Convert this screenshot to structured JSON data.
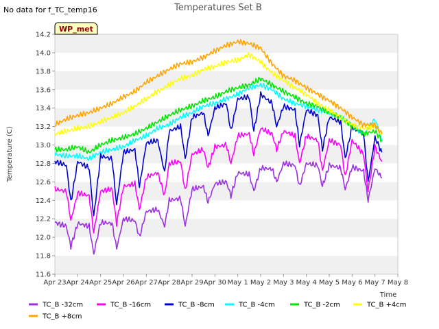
{
  "chart_data": {
    "type": "line",
    "title": "Temperatures Set B",
    "no_data_note": "No data for f_TC_temp16",
    "badge": "WP_met",
    "xlabel": "Time",
    "ylabel": "Temperature (C)",
    "ylim": [
      11.6,
      14.2
    ],
    "y_ticks": [
      "11.6",
      "11.8",
      "12.0",
      "12.2",
      "12.4",
      "12.6",
      "12.8",
      "13.0",
      "13.2",
      "13.4",
      "13.6",
      "13.8",
      "14.0",
      "14.2"
    ],
    "xlim": [
      0,
      15
    ],
    "x_tick_labels": [
      "Apr 23",
      "Apr 24",
      "Apr 25",
      "Apr 26",
      "Apr 27",
      "Apr 28",
      "Apr 29",
      "Apr 30",
      "May 1",
      "May 2",
      "May 3",
      "May 4",
      "May 5",
      "May 6",
      "May 7",
      "May 8"
    ],
    "x_data_unit": "days since Apr 23",
    "grid": "horizontal alternating bands",
    "legend_placement": "bottom",
    "series": [
      {
        "name": "TC_B -32cm",
        "color": "#9b30e0",
        "x": [
          0,
          0.5,
          0.7,
          1,
          1.5,
          1.7,
          2,
          2.5,
          2.7,
          3,
          3.5,
          3.7,
          4,
          4.5,
          4.8,
          5,
          5.5,
          5.7,
          6,
          6.5,
          6.7,
          7,
          7.5,
          7.7,
          8,
          8.5,
          8.7,
          9,
          9.5,
          9.7,
          10,
          10.5,
          10.7,
          11,
          11.5,
          11.7,
          12,
          12.5,
          12.7,
          13,
          13.5,
          13.7,
          14,
          14.3
        ],
        "y": [
          12.16,
          12.12,
          11.9,
          12.15,
          12.12,
          11.82,
          12.16,
          12.15,
          11.88,
          12.2,
          12.18,
          12.0,
          12.28,
          12.3,
          12.12,
          12.4,
          12.42,
          12.12,
          12.52,
          12.55,
          12.38,
          12.58,
          12.6,
          12.45,
          12.7,
          12.68,
          12.5,
          12.75,
          12.74,
          12.6,
          12.8,
          12.78,
          12.55,
          12.8,
          12.78,
          12.55,
          12.78,
          12.75,
          12.52,
          12.76,
          12.72,
          12.4,
          12.75,
          12.64
        ]
      },
      {
        "name": "TC_B -16cm",
        "color": "#ff00ff",
        "x": [
          0,
          0.5,
          0.7,
          1,
          1.5,
          1.7,
          2,
          2.5,
          2.7,
          3,
          3.5,
          3.7,
          4,
          4.5,
          4.8,
          5,
          5.5,
          5.7,
          6,
          6.5,
          6.7,
          7,
          7.5,
          7.7,
          8,
          8.5,
          8.7,
          9,
          9.5,
          9.7,
          10,
          10.5,
          10.7,
          11,
          11.5,
          11.7,
          12,
          12.5,
          12.7,
          13,
          13.5,
          13.7,
          14,
          14.3
        ],
        "y": [
          12.52,
          12.5,
          12.18,
          12.48,
          12.45,
          12.05,
          12.5,
          12.52,
          12.15,
          12.55,
          12.58,
          12.3,
          12.65,
          12.7,
          12.45,
          12.8,
          12.82,
          12.5,
          12.9,
          12.95,
          12.75,
          12.98,
          13.0,
          12.8,
          13.1,
          13.12,
          12.9,
          13.18,
          13.12,
          12.95,
          13.15,
          13.1,
          12.8,
          13.1,
          13.05,
          12.72,
          13.05,
          13.0,
          12.65,
          13.05,
          12.9,
          12.5,
          12.98,
          12.82
        ]
      },
      {
        "name": "TC_B -8cm",
        "color": "#0000cd",
        "x": [
          0,
          0.5,
          0.7,
          1,
          1.5,
          1.7,
          2,
          2.5,
          2.7,
          3,
          3.5,
          3.7,
          4,
          4.5,
          4.8,
          5,
          5.5,
          5.7,
          6,
          6.5,
          6.7,
          7,
          7.5,
          7.7,
          8,
          8.5,
          8.7,
          9,
          9.5,
          9.7,
          10,
          10.5,
          10.7,
          11,
          11.5,
          11.7,
          12,
          12.5,
          12.7,
          13,
          13.5,
          13.7,
          14,
          14.3
        ],
        "y": [
          12.82,
          12.78,
          12.38,
          12.82,
          12.75,
          12.22,
          12.88,
          12.85,
          12.35,
          12.92,
          12.95,
          12.55,
          13.02,
          13.05,
          12.7,
          13.15,
          13.2,
          12.85,
          13.3,
          13.35,
          13.1,
          13.4,
          13.45,
          13.15,
          13.5,
          13.52,
          13.15,
          13.55,
          13.45,
          13.2,
          13.42,
          13.38,
          13.0,
          13.38,
          13.32,
          12.95,
          13.3,
          13.25,
          12.85,
          13.2,
          13.12,
          12.6,
          13.08,
          12.92
        ]
      },
      {
        "name": "TC_B -4cm",
        "color": "#00ffff",
        "x": [
          0,
          0.5,
          1,
          1.5,
          2,
          2.5,
          3,
          3.5,
          4,
          4.5,
          5,
          5.5,
          6,
          6.5,
          7,
          7.5,
          8,
          8.5,
          9,
          9.5,
          10,
          10.5,
          11,
          11.5,
          12,
          12.5,
          13,
          13.5,
          14,
          14.3
        ],
        "y": [
          12.9,
          12.88,
          12.88,
          12.85,
          12.92,
          12.95,
          12.98,
          13.05,
          13.1,
          13.18,
          13.22,
          13.3,
          13.35,
          13.42,
          13.45,
          13.5,
          13.55,
          13.62,
          13.65,
          13.6,
          13.5,
          13.45,
          13.42,
          13.38,
          13.35,
          13.3,
          13.22,
          13.12,
          13.28,
          13.05
        ]
      },
      {
        "name": "TC_B -2cm",
        "color": "#00e600",
        "x": [
          0,
          0.5,
          1,
          1.5,
          2,
          2.5,
          3,
          3.5,
          4,
          4.5,
          5,
          5.5,
          6,
          6.5,
          7,
          7.5,
          8,
          8.5,
          9,
          9.5,
          10,
          10.5,
          11,
          11.5,
          12,
          12.5,
          13,
          13.5,
          14,
          14.3
        ],
        "y": [
          12.95,
          12.95,
          12.98,
          12.92,
          13.0,
          13.05,
          13.08,
          13.12,
          13.18,
          13.25,
          13.32,
          13.38,
          13.42,
          13.48,
          13.52,
          13.58,
          13.62,
          13.65,
          13.72,
          13.65,
          13.58,
          13.52,
          13.45,
          13.42,
          13.35,
          13.3,
          13.2,
          13.12,
          13.15,
          13.05
        ]
      },
      {
        "name": "TC_B +4cm",
        "color": "#ffff00",
        "x": [
          0,
          0.5,
          1,
          1.5,
          2,
          2.5,
          3,
          3.5,
          4,
          4.5,
          5,
          5.5,
          6,
          6.5,
          7,
          7.5,
          8,
          8.5,
          9,
          9.5,
          10,
          10.5,
          11,
          11.5,
          12,
          12.5,
          13,
          13.5,
          14,
          14.3
        ],
        "y": [
          13.12,
          13.15,
          13.18,
          13.2,
          13.25,
          13.3,
          13.35,
          13.42,
          13.5,
          13.58,
          13.65,
          13.72,
          13.75,
          13.82,
          13.85,
          13.9,
          13.92,
          13.98,
          13.9,
          13.78,
          13.7,
          13.62,
          13.55,
          13.45,
          13.38,
          13.3,
          13.22,
          13.18,
          13.2,
          13.12
        ]
      },
      {
        "name": "TC_B +8cm",
        "color": "#ffa500",
        "x": [
          0,
          0.5,
          1,
          1.5,
          2,
          2.5,
          3,
          3.5,
          4,
          4.5,
          5,
          5.5,
          6,
          6.5,
          7,
          7.5,
          8,
          8.5,
          9,
          9.5,
          10,
          10.5,
          11,
          11.5,
          12,
          12.5,
          13,
          13.5,
          14,
          14.3
        ],
        "y": [
          13.22,
          13.28,
          13.32,
          13.35,
          13.4,
          13.45,
          13.52,
          13.58,
          13.68,
          13.75,
          13.82,
          13.88,
          13.9,
          13.95,
          14.02,
          14.08,
          14.12,
          14.1,
          14.05,
          13.88,
          13.75,
          13.7,
          13.62,
          13.55,
          13.48,
          13.4,
          13.3,
          13.22,
          13.22,
          13.12
        ]
      }
    ]
  }
}
